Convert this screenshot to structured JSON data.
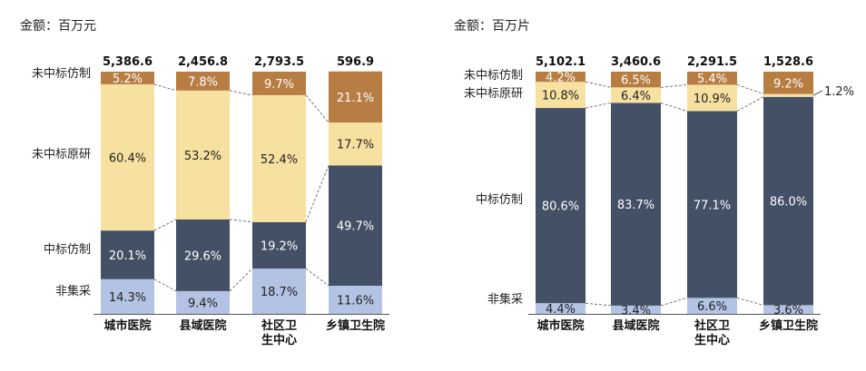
{
  "colors": {
    "bucket_non_vbp": "#b3c3e3",
    "bucket_winner_generic": "#435066",
    "bucket_non_winner_originator": "#f7e1a1",
    "bucket_non_winner_generic": "#b77d43",
    "connector": "#555555"
  },
  "chart_data": [
    {
      "type": "bar",
      "stacked": true,
      "normalized": true,
      "unit_label": "金额：百万元",
      "categories": [
        "城市医院",
        "县域医院",
        "社区卫生中心",
        "乡镇卫生院"
      ],
      "category_labels": [
        [
          "城市医院"
        ],
        [
          "县域医院"
        ],
        [
          "社区卫",
          "生中心"
        ],
        [
          "乡镇卫生院"
        ]
      ],
      "totals": [
        "5,386.6",
        "2,456.8",
        "2,793.5",
        "596.9"
      ],
      "series": [
        {
          "name": "非集采",
          "values": [
            14.3,
            9.4,
            18.7,
            11.6
          ],
          "labels": [
            "14.3%",
            "9.4%",
            "18.7%",
            "11.6%"
          ],
          "color_key": "bucket_non_vbp"
        },
        {
          "name": "中标仿制",
          "values": [
            20.1,
            29.6,
            19.2,
            49.7
          ],
          "labels": [
            "20.1%",
            "29.6%",
            "19.2%",
            "49.7%"
          ],
          "color_key": "bucket_winner_generic"
        },
        {
          "name": "未中标原研",
          "values": [
            60.4,
            53.2,
            52.4,
            17.7
          ],
          "labels": [
            "60.4%",
            "53.2%",
            "52.4%",
            "17.7%"
          ],
          "color_key": "bucket_non_winner_originator"
        },
        {
          "name": "未中标仿制",
          "values": [
            5.2,
            7.8,
            9.7,
            21.1
          ],
          "labels": [
            "5.2%",
            "7.8%",
            "9.7%",
            "21.1%"
          ],
          "color_key": "bucket_non_winner_generic"
        }
      ]
    },
    {
      "type": "bar",
      "stacked": true,
      "normalized": true,
      "unit_label": "金额：百万片",
      "categories": [
        "城市医院",
        "县域医院",
        "社区卫生中心",
        "乡镇卫生院"
      ],
      "category_labels": [
        [
          "城市医院"
        ],
        [
          "县域医院"
        ],
        [
          "社区卫",
          "生中心"
        ],
        [
          "乡镇卫生院"
        ]
      ],
      "totals": [
        "5,102.1",
        "3,460.6",
        "2,291.5",
        "1,528.6"
      ],
      "series": [
        {
          "name": "非集采",
          "values": [
            4.4,
            3.4,
            6.6,
            3.6
          ],
          "labels": [
            "4.4%",
            "3.4%",
            "6.6%",
            "3.6%"
          ],
          "color_key": "bucket_non_vbp"
        },
        {
          "name": "中标仿制",
          "values": [
            80.6,
            83.7,
            77.1,
            86.0
          ],
          "labels": [
            "80.6%",
            "83.7%",
            "77.1%",
            "86.0%"
          ],
          "color_key": "bucket_winner_generic"
        },
        {
          "name": "未中标原研",
          "values": [
            10.8,
            6.4,
            10.9,
            1.2
          ],
          "labels": [
            "10.8%",
            "6.4%",
            "10.9%",
            "1.2%"
          ],
          "color_key": "bucket_non_winner_originator"
        },
        {
          "name": "未中标仿制",
          "values": [
            4.2,
            6.5,
            5.4,
            9.2
          ],
          "labels": [
            "4.2%",
            "6.5%",
            "5.4%",
            "9.2%"
          ],
          "color_key": "bucket_non_winner_generic"
        }
      ]
    }
  ]
}
